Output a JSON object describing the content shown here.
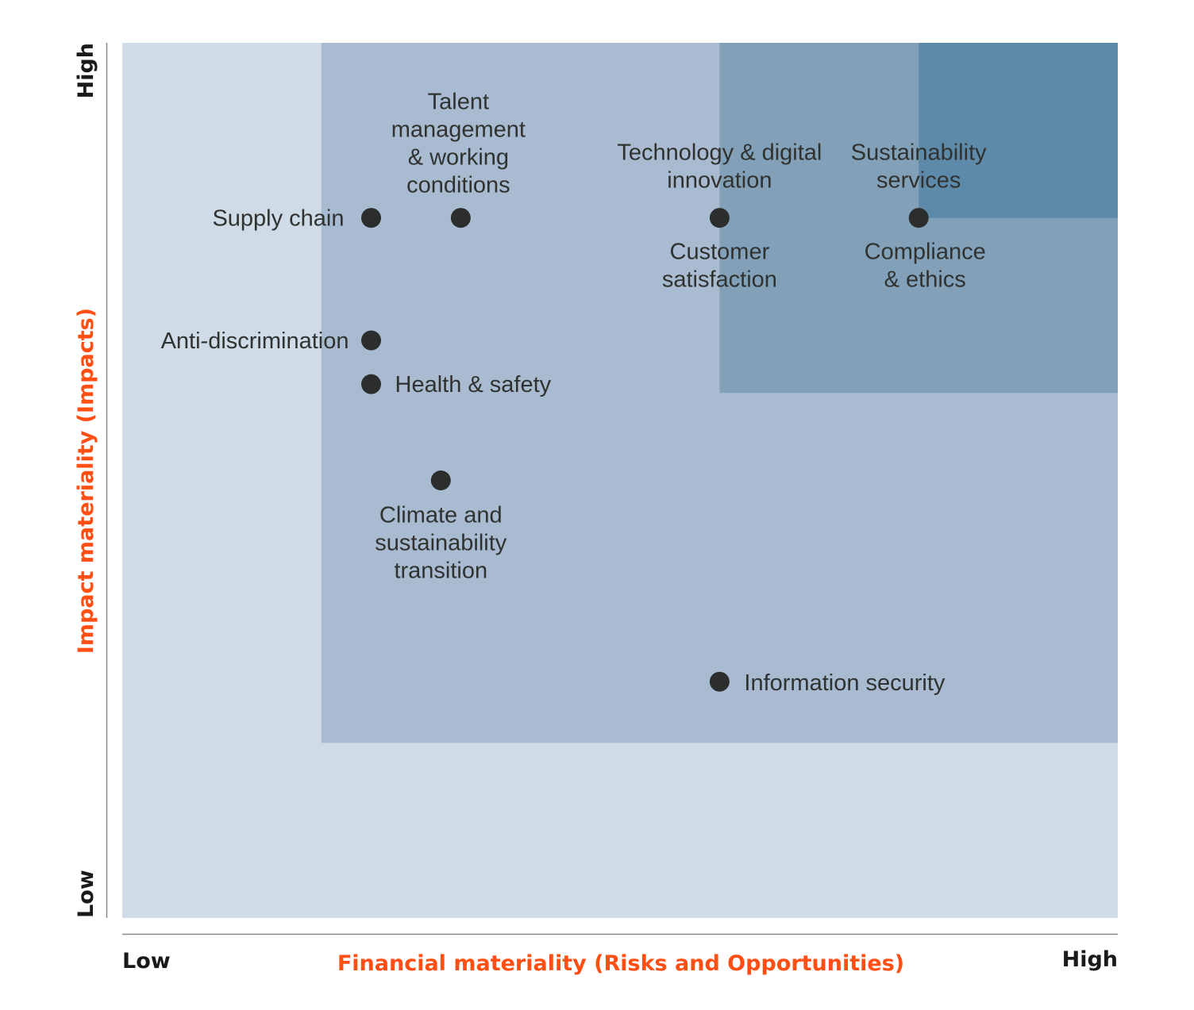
{
  "chart_data": {
    "type": "scatter",
    "title": "",
    "xlabel": "Financial materiality (Risks and Opportunities)",
    "ylabel": "Impact materiality (Impacts)",
    "x_low_label": "Low",
    "x_high_label": "High",
    "y_low_label": "Low",
    "y_high_label": "High",
    "xlim": [
      0,
      10
    ],
    "ylim": [
      0,
      10
    ],
    "grid": false,
    "axis_title_color": "#ff4f14",
    "point_color": "#2b2e2c",
    "zones": [
      {
        "x": [
          0,
          10
        ],
        "y": [
          0,
          10
        ],
        "color": "#cfdbe6"
      },
      {
        "x": [
          2,
          10
        ],
        "y": [
          2,
          10
        ],
        "color": "#a9bbd0"
      },
      {
        "x": [
          6,
          10
        ],
        "y": [
          6,
          10
        ],
        "color": "#82a1b8"
      },
      {
        "x": [
          8,
          10
        ],
        "y": [
          8,
          10
        ],
        "color": "#5e8aaa"
      }
    ],
    "points": [
      {
        "x": 2.5,
        "y": 8.0,
        "labels": [
          [
            "Supply chain"
          ]
        ]
      },
      {
        "x": 3.4,
        "y": 8.0,
        "labels": [
          [
            "Talent",
            "management",
            "& working",
            "conditions"
          ]
        ]
      },
      {
        "x": 6.0,
        "y": 8.0,
        "labels": [
          [
            "Technology & digital",
            "innovation"
          ],
          [
            "Customer",
            "satisfaction"
          ]
        ]
      },
      {
        "x": 8.0,
        "y": 8.0,
        "labels": [
          [
            "Sustainability",
            "services"
          ],
          [
            "Compliance",
            "& ethics"
          ]
        ]
      },
      {
        "x": 2.5,
        "y": 6.6,
        "labels": [
          [
            "Anti-discrimination"
          ]
        ]
      },
      {
        "x": 2.5,
        "y": 6.1,
        "labels": [
          [
            "Health & safety"
          ]
        ]
      },
      {
        "x": 3.2,
        "y": 5.0,
        "labels": [
          [
            "Climate and",
            "sustainability",
            "transition"
          ]
        ]
      },
      {
        "x": 6.0,
        "y": 2.7,
        "labels": [
          [
            "Information security"
          ]
        ]
      }
    ]
  }
}
